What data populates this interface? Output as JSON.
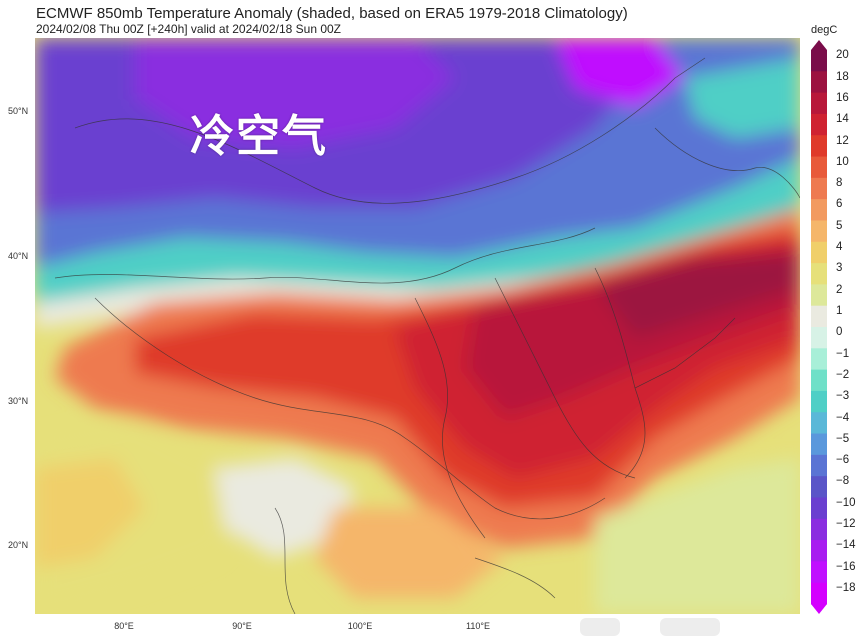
{
  "header": {
    "title": "ECMWF 850mb Temperature Anomaly (shaded, based on ERA5 1979-2018 Climatology)",
    "subtitle": "2024/02/08 Thu 00Z [+240h] valid at 2024/02/18 Sun 00Z"
  },
  "annotation": {
    "label": "冷空气"
  },
  "axes": {
    "lat_labels": [
      "50°N",
      "40°N",
      "30°N",
      "20°N"
    ],
    "lon_labels": [
      "80°E",
      "90°E",
      "100°E",
      "110°E"
    ]
  },
  "colorbar": {
    "units": "degC",
    "ticks": [
      "20",
      "18",
      "16",
      "14",
      "12",
      "10",
      "8",
      "6",
      "5",
      "4",
      "3",
      "2",
      "1",
      "0",
      "−1",
      "−2",
      "−3",
      "−4",
      "−5",
      "−6",
      "−8",
      "−10",
      "−12",
      "−14",
      "−16",
      "−18"
    ],
    "colors": [
      "#7a0d4a",
      "#9c1240",
      "#b8183a",
      "#cf2231",
      "#df3a2a",
      "#e85a3a",
      "#ee7a50",
      "#f29a60",
      "#f5b66a",
      "#f0cf6a",
      "#e6e07a",
      "#dde89a",
      "#eaeae0",
      "#d7f2e6",
      "#a8efd8",
      "#6fe0c8",
      "#4fcfc6",
      "#5ab8d8",
      "#5a98dc",
      "#5a74d4",
      "#5a55c8",
      "#6a3fd0",
      "#8a2ee0",
      "#a81cf0",
      "#c010ff",
      "#d400ff"
    ]
  },
  "colors": {
    "cold_deep": "#6a3fd0",
    "cold_mid": "#5a74d4",
    "cool": "#4fcfc6",
    "neutral": "#eaeae0",
    "mild": "#e6e07a",
    "warm": "#ee7a50",
    "hot": "#cf2231",
    "very_hot": "#9c1240"
  }
}
